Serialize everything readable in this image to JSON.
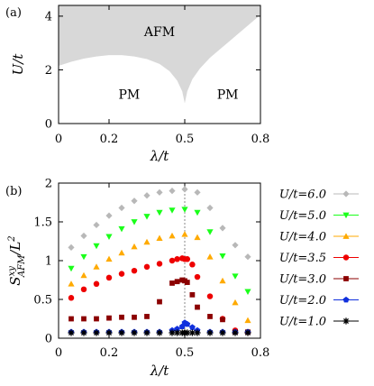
{
  "chart_data": [
    {
      "type": "phase-diagram",
      "panel_label": "(a)",
      "xlabel": "λ/t",
      "ylabel": "U/t",
      "xlim": [
        0,
        0.8
      ],
      "ylim": [
        0,
        4.4
      ],
      "xticks": [
        {
          "value": 0,
          "label": "0"
        },
        {
          "value": 0.2,
          "label": "0.2"
        },
        {
          "value": 0.5,
          "label": "0.5"
        },
        {
          "value": 0.8,
          "label": "0.8"
        }
      ],
      "yticks": [
        {
          "value": 0,
          "label": "0"
        },
        {
          "value": 2,
          "label": "2"
        },
        {
          "value": 4,
          "label": "4"
        }
      ],
      "fill_color": "#d8d8d8",
      "regions": [
        {
          "label": "AFM",
          "x": 0.4,
          "y": 3.25
        },
        {
          "label": "PM",
          "x": 0.28,
          "y": 0.92
        },
        {
          "label": "PM",
          "x": 0.67,
          "y": 0.92
        }
      ],
      "boundary": {
        "x": [
          0,
          0.05,
          0.1,
          0.15,
          0.2,
          0.25,
          0.3,
          0.35,
          0.4,
          0.44,
          0.47,
          0.49,
          0.5,
          0.51,
          0.53,
          0.56,
          0.6,
          0.65,
          0.7,
          0.75,
          0.8
        ],
        "y": [
          2.15,
          2.3,
          2.42,
          2.5,
          2.55,
          2.55,
          2.5,
          2.4,
          2.22,
          1.95,
          1.6,
          1.2,
          0.75,
          1.2,
          1.65,
          2.05,
          2.45,
          2.85,
          3.25,
          3.65,
          4.05
        ]
      }
    },
    {
      "type": "scatter",
      "panel_label": "(b)",
      "xlabel": "λ/t",
      "ylabel": "S^{xy}_{AFM}/L^2",
      "xlim": [
        0,
        0.8
      ],
      "ylim": [
        0,
        2
      ],
      "xticks": [
        {
          "value": 0,
          "label": "0"
        },
        {
          "value": 0.2,
          "label": "0.2"
        },
        {
          "value": 0.5,
          "label": "0.5"
        },
        {
          "value": 0.8,
          "label": "0.8"
        }
      ],
      "yticks": [
        {
          "value": 0,
          "label": "0"
        },
        {
          "value": 0.5,
          "label": "0.5"
        },
        {
          "value": 1,
          "label": "1"
        },
        {
          "value": 1.5,
          "label": "1.5"
        },
        {
          "value": 2,
          "label": "2"
        }
      ],
      "vline_x": 0.5,
      "legend_position": "right",
      "x": [
        0.05,
        0.1,
        0.15,
        0.2,
        0.25,
        0.3,
        0.35,
        0.4,
        0.45,
        0.47,
        0.49,
        0.5,
        0.51,
        0.53,
        0.55,
        0.6,
        0.65,
        0.7,
        0.75
      ],
      "series": [
        {
          "name": "U/t=6.0",
          "color": "#b8b8b8",
          "marker": "diamond",
          "values": [
            1.17,
            1.32,
            1.46,
            1.58,
            1.68,
            1.77,
            1.84,
            1.88,
            1.9,
            null,
            null,
            1.92,
            null,
            null,
            1.88,
            1.68,
            1.42,
            1.2,
            1.05
          ]
        },
        {
          "name": "U/t=5.0",
          "color": "#1aff1a",
          "marker": "triangle-down",
          "values": [
            0.9,
            1.05,
            1.19,
            1.31,
            1.41,
            1.5,
            1.57,
            1.62,
            1.65,
            null,
            null,
            1.66,
            null,
            null,
            1.62,
            1.37,
            1.06,
            0.8,
            0.6
          ]
        },
        {
          "name": "U/t=4.0",
          "color": "#ffaa00",
          "marker": "triangle-up",
          "values": [
            0.7,
            0.81,
            0.92,
            1.02,
            1.1,
            1.18,
            1.24,
            1.29,
            1.32,
            null,
            null,
            1.34,
            null,
            null,
            1.3,
            1.05,
            0.74,
            0.46,
            0.23
          ]
        },
        {
          "name": "U/t=3.5",
          "color": "#ee0000",
          "marker": "circle",
          "values": [
            0.52,
            0.63,
            0.7,
            0.78,
            0.83,
            0.87,
            0.92,
            0.96,
            1.0,
            1.02,
            1.03,
            1.02,
            1.02,
            0.95,
            0.79,
            0.54,
            0.25,
            0.1,
            0.08
          ]
        },
        {
          "name": "U/t=3.0",
          "color": "#8b0000",
          "marker": "square",
          "values": [
            0.25,
            0.25,
            0.25,
            0.26,
            0.27,
            0.27,
            0.28,
            0.47,
            0.71,
            0.73,
            0.75,
            0.74,
            0.72,
            0.56,
            0.4,
            0.28,
            0.24,
            0.08,
            0.08
          ]
        },
        {
          "name": "U/t=2.0",
          "color": "#1030dd",
          "marker": "pentagon",
          "values": [
            0.08,
            0.08,
            0.08,
            0.08,
            0.08,
            0.08,
            0.08,
            0.08,
            0.1,
            0.12,
            0.15,
            0.2,
            0.18,
            0.14,
            0.1,
            0.08,
            0.08,
            0.08,
            0.08
          ]
        },
        {
          "name": "U/t=1.0",
          "color": "#000000",
          "marker": "asterisk",
          "values": [
            0.07,
            0.07,
            0.07,
            0.07,
            0.07,
            0.07,
            0.07,
            0.07,
            0.07,
            0.07,
            0.07,
            0.07,
            0.07,
            0.07,
            0.07,
            0.07,
            0.07,
            0.07,
            0.07
          ]
        }
      ]
    }
  ]
}
